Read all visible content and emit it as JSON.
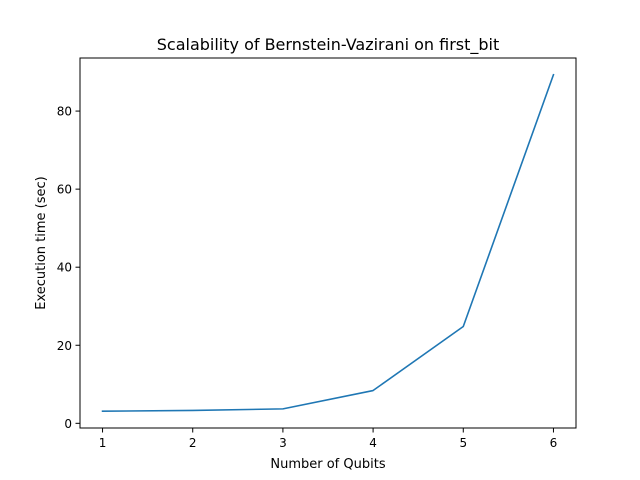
{
  "chart_data": {
    "type": "line",
    "title": "Scalability of Bernstein-Vazirani on first_bit",
    "xlabel": "Number of Qubits",
    "ylabel": "Execution time (sec)",
    "x": [
      1,
      2,
      3,
      4,
      5,
      6
    ],
    "series": [
      {
        "values": [
          3.1,
          3.3,
          3.7,
          8.4,
          24.8,
          89.3
        ],
        "color": "#1f77b4"
      }
    ],
    "xticks": [
      "1",
      "2",
      "3",
      "4",
      "5",
      "6"
    ],
    "yticks": [
      "0",
      "20",
      "40",
      "60",
      "80"
    ],
    "xlim": [
      0.75,
      6.25
    ],
    "ylim": [
      -1.2,
      93.6
    ],
    "grid": false,
    "legend": "none"
  }
}
